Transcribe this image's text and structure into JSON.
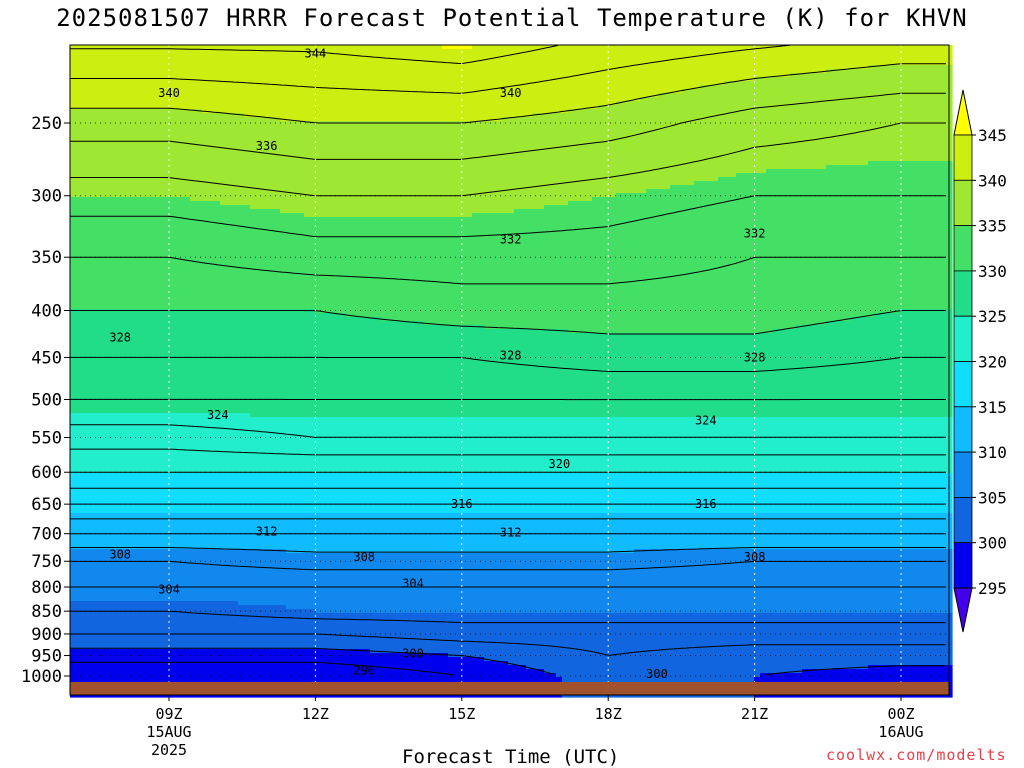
{
  "title": "2025081507 HRRR Forecast Potential Temperature (K) for KHVN",
  "credit": "coolwx.com/modelts",
  "chart_data": {
    "type": "heatmap",
    "title": "2025081507 HRRR Forecast Potential Temperature (K) for KHVN",
    "xlabel": "Forecast Time (UTC)",
    "ylabel": "",
    "x_range_utc": [
      "2025-08-15 07Z",
      "2025-08-16 01Z"
    ],
    "y_axis": {
      "unit": "hPa",
      "inverted": true,
      "ylim": [
        1025,
        200
      ]
    },
    "y_ticks": [
      250,
      300,
      350,
      400,
      450,
      500,
      550,
      600,
      650,
      700,
      750,
      800,
      850,
      900,
      950,
      1000
    ],
    "x_ticks": [
      {
        "time": "2025-08-15 09Z",
        "label": "09Z",
        "sub1": "15AUG",
        "sub2": "2025"
      },
      {
        "time": "2025-08-15 12Z",
        "label": "12Z",
        "sub1": "",
        "sub2": ""
      },
      {
        "time": "2025-08-15 15Z",
        "label": "15Z",
        "sub1": "",
        "sub2": ""
      },
      {
        "time": "2025-08-15 18Z",
        "label": "18Z",
        "sub1": "",
        "sub2": ""
      },
      {
        "time": "2025-08-15 21Z",
        "label": "21Z",
        "sub1": "",
        "sub2": ""
      },
      {
        "time": "2025-08-16 00Z",
        "label": "00Z",
        "sub1": "16AUG",
        "sub2": ""
      }
    ],
    "grid": true,
    "colorbar": {
      "placement": "right",
      "labels": [
        "345",
        "340",
        "335",
        "330",
        "325",
        "320",
        "315",
        "310",
        "305",
        "300",
        "295"
      ],
      "colors": [
        "#ffff00",
        "#ccee11",
        "#9ee833",
        "#44e066",
        "#22dd88",
        "#22eecc",
        "#11ddff",
        "#11bbff",
        "#1188ee",
        "#1166e0",
        "#0000ee",
        "#4400e8"
      ]
    },
    "contour_interval_K": 2,
    "profiles_note": "potential temperature (K) at 1000-200 hPa levels for each forecast hour",
    "levels_hPa": [
      1000,
      950,
      900,
      850,
      800,
      750,
      700,
      650,
      600,
      550,
      500,
      450,
      400,
      350,
      300,
      250,
      200
    ],
    "series": [
      {
        "time": "07Z",
        "theta": [
          296,
          299,
          302,
          304,
          306,
          308,
          312,
          316,
          320,
          323,
          326,
          328,
          330,
          332,
          335,
          339,
          345
        ]
      },
      {
        "time": "09Z",
        "theta": [
          296,
          299,
          302,
          304,
          306,
          308,
          312,
          316,
          320,
          323,
          326,
          328,
          330,
          332,
          335,
          339,
          345
        ]
      },
      {
        "time": "12Z",
        "theta": [
          296,
          299,
          302,
          305,
          306,
          309,
          312,
          316,
          320,
          324,
          326,
          328,
          330,
          333,
          336,
          340,
          345
        ]
      },
      {
        "time": "15Z",
        "theta": [
          298,
          300,
          303,
          305,
          306,
          309,
          312,
          316,
          320,
          324,
          326,
          328,
          331,
          333,
          336,
          340,
          346
        ]
      },
      {
        "time": "18Z",
        "theta": [
          301,
          302,
          303,
          305,
          306,
          309,
          312,
          316,
          320,
          324,
          326,
          329,
          331,
          333,
          335,
          339,
          344
        ]
      },
      {
        "time": "21Z",
        "theta": [
          300,
          301,
          303,
          305,
          306,
          308,
          312,
          316,
          320,
          324,
          326,
          329,
          331,
          332,
          334,
          337,
          343
        ]
      },
      {
        "time": "00Z",
        "theta": [
          299,
          301,
          303,
          305,
          306,
          308,
          312,
          316,
          320,
          324,
          326,
          328,
          330,
          332,
          334,
          336,
          342
        ]
      },
      {
        "time": "01Z",
        "theta": [
          299,
          301,
          303,
          305,
          306,
          308,
          312,
          316,
          320,
          324,
          326,
          328,
          330,
          332,
          334,
          336,
          342
        ]
      }
    ],
    "contour_labels": [
      {
        "text": "344",
        "time": "12Z",
        "p": 210
      },
      {
        "text": "340",
        "time": "09Z",
        "p": 232
      },
      {
        "text": "340",
        "time": "16Z",
        "p": 232
      },
      {
        "text": "336",
        "time": "11Z",
        "p": 265
      },
      {
        "text": "332",
        "time": "16Z",
        "p": 335
      },
      {
        "text": "332",
        "time": "21Z",
        "p": 330
      },
      {
        "text": "328",
        "time": "08Z",
        "p": 428
      },
      {
        "text": "328",
        "time": "16Z",
        "p": 448
      },
      {
        "text": "328",
        "time": "21Z",
        "p": 450
      },
      {
        "text": "324",
        "time": "10Z",
        "p": 520
      },
      {
        "text": "324",
        "time": "20Z",
        "p": 527
      },
      {
        "text": "320",
        "time": "17Z",
        "p": 588
      },
      {
        "text": "316",
        "time": "15Z",
        "p": 650
      },
      {
        "text": "316",
        "time": "20Z",
        "p": 650
      },
      {
        "text": "312",
        "time": "11Z",
        "p": 696
      },
      {
        "text": "312",
        "time": "16Z",
        "p": 698
      },
      {
        "text": "308",
        "time": "08Z",
        "p": 737
      },
      {
        "text": "308",
        "time": "13Z",
        "p": 742
      },
      {
        "text": "308",
        "time": "21Z",
        "p": 742
      },
      {
        "text": "304",
        "time": "09Z",
        "p": 805
      },
      {
        "text": "304",
        "time": "14Z",
        "p": 793
      },
      {
        "text": "300",
        "time": "14Z",
        "p": 945
      },
      {
        "text": "300",
        "time": "19Z",
        "p": 995
      },
      {
        "text": "296",
        "time": "13Z",
        "p": 986
      }
    ]
  }
}
